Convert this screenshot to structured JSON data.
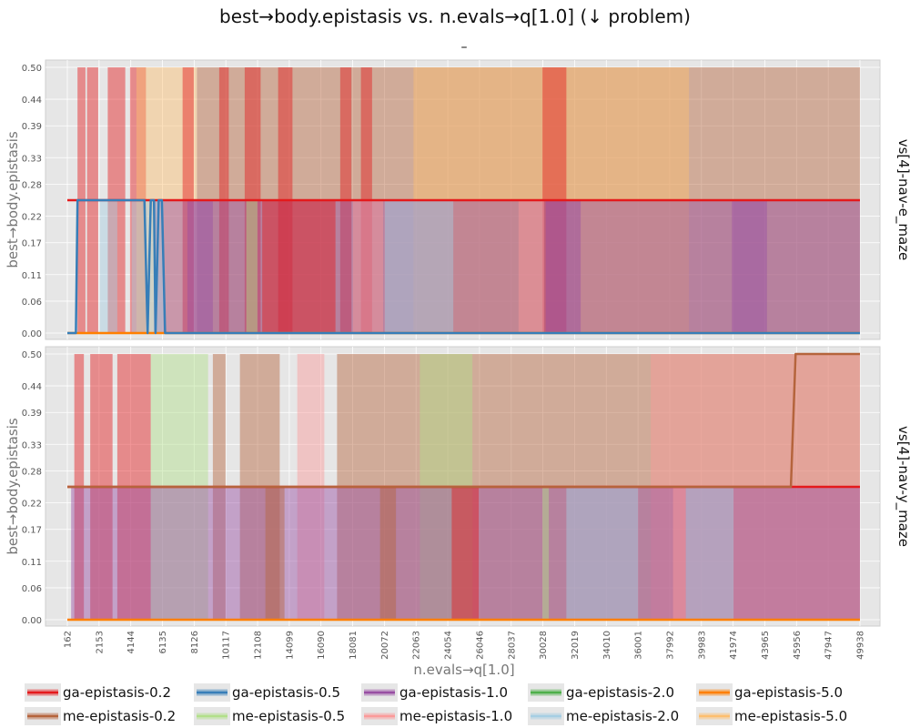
{
  "chart_data": {
    "type": "area",
    "title": "best→body.epistasis vs. n.evals→q[1.0] (↓ problem)",
    "subtitle": "–",
    "xlabel": "n.evals→q[1.0]",
    "ylabel": "best→body.epistasis",
    "xlim": [
      162,
      49938
    ],
    "ylim": [
      0.0,
      0.5
    ],
    "x_ticks": [
      162,
      2153,
      4144,
      6135,
      8126,
      10117,
      12108,
      14099,
      16090,
      18081,
      20072,
      22063,
      24054,
      26046,
      28037,
      30028,
      32019,
      34010,
      36001,
      37992,
      39983,
      41974,
      43965,
      45956,
      47947,
      49938
    ],
    "y_ticks": [
      "0.00",
      "0.06",
      "0.11",
      "0.17",
      "0.22",
      "0.28",
      "0.33",
      "0.39",
      "0.44",
      "0.50"
    ],
    "grid": true,
    "legend_position": "bottom",
    "series": [
      {
        "name": "ga-epistasis-0.2",
        "color": "#e41a1c"
      },
      {
        "name": "ga-epistasis-0.5",
        "color": "#377eb8"
      },
      {
        "name": "ga-epistasis-1.0",
        "color": "#984ea3"
      },
      {
        "name": "ga-epistasis-2.0",
        "color": "#4daf4a"
      },
      {
        "name": "ga-epistasis-5.0",
        "color": "#ff7f00"
      },
      {
        "name": "me-epistasis-0.2",
        "color": "#b5643c"
      },
      {
        "name": "me-epistasis-0.5",
        "color": "#b2df8a"
      },
      {
        "name": "me-epistasis-1.0",
        "color": "#fb9a99"
      },
      {
        "name": "me-epistasis-2.0",
        "color": "#a6cee3"
      },
      {
        "name": "me-epistasis-5.0",
        "color": "#fdbf6f"
      }
    ],
    "panels": [
      {
        "facet_label": "vs[4]-nav-e_maze",
        "median_lines": [
          {
            "series": "ga-epistasis-0.2",
            "x": [
              162,
              49938
            ],
            "y": [
              0.25,
              0.25
            ]
          },
          {
            "series": "ga-epistasis-5.0",
            "x": [
              162,
              49938
            ],
            "y": [
              0.0,
              0.0
            ]
          },
          {
            "series": "ga-epistasis-0.5",
            "x": [
              162,
              700,
              800,
              5000,
              5200,
              5400,
              5600,
              5700,
              5900,
              6100,
              6300,
              49938
            ],
            "y": [
              0.0,
              0.0,
              0.25,
              0.25,
              0.0,
              0.25,
              0.25,
              0.0,
              0.25,
              0.25,
              0.0,
              0.0
            ]
          }
        ],
        "bands": [
          {
            "series": "me-epistasis-0.2",
            "x": [
              8300,
              49938
            ],
            "y": [
              0.0,
              0.5
            ]
          },
          {
            "series": "me-epistasis-5.0",
            "x": [
              21900,
              39200
            ],
            "y": [
              0.0,
              0.5
            ]
          },
          {
            "series": "ga-epistasis-0.2",
            "x": [
              800,
              1300
            ],
            "y": [
              0.0,
              0.5
            ]
          },
          {
            "series": "ga-epistasis-0.2",
            "x": [
              1400,
              2100
            ],
            "y": [
              0.0,
              0.5
            ]
          },
          {
            "series": "ga-epistasis-0.2",
            "x": [
              2700,
              3800
            ],
            "y": [
              0.0,
              0.5
            ]
          },
          {
            "series": "ga-epistasis-0.2",
            "x": [
              4100,
              5100
            ],
            "y": [
              0.0,
              0.5
            ]
          },
          {
            "series": "me-epistasis-5.0",
            "x": [
              4500,
              8300
            ],
            "y": [
              0.0,
              0.5
            ]
          },
          {
            "series": "ga-epistasis-0.2",
            "x": [
              7400,
              8100
            ],
            "y": [
              0.0,
              0.5
            ]
          },
          {
            "series": "ga-epistasis-0.2",
            "x": [
              9700,
              10300
            ],
            "y": [
              0.0,
              0.5
            ]
          },
          {
            "series": "ga-epistasis-0.2",
            "x": [
              11300,
              12300
            ],
            "y": [
              0.0,
              0.5
            ]
          },
          {
            "series": "ga-epistasis-0.2",
            "x": [
              13400,
              14300
            ],
            "y": [
              0.0,
              0.5
            ]
          },
          {
            "series": "ga-epistasis-0.2",
            "x": [
              17300,
              18000
            ],
            "y": [
              0.0,
              0.5
            ]
          },
          {
            "series": "ga-epistasis-0.2",
            "x": [
              18600,
              19300
            ],
            "y": [
              0.0,
              0.5
            ]
          },
          {
            "series": "ga-epistasis-0.2",
            "x": [
              30000,
              31500
            ],
            "y": [
              0.0,
              0.5
            ]
          },
          {
            "series": "ga-epistasis-1.0",
            "x": [
              5600,
              49938
            ],
            "y": [
              0.0,
              0.25
            ]
          },
          {
            "series": "me-epistasis-2.0",
            "x": [
              20100,
              24400
            ],
            "y": [
              0.0,
              0.25
            ]
          },
          {
            "series": "ga-epistasis-0.2",
            "x": [
              12400,
              17000
            ],
            "y": [
              0.0,
              0.25
            ]
          },
          {
            "series": "me-epistasis-1.0",
            "x": [
              18100,
              20000
            ],
            "y": [
              0.0,
              0.25
            ]
          },
          {
            "series": "me-epistasis-2.0",
            "x": [
              2200,
              3300
            ],
            "y": [
              0.0,
              0.25
            ]
          },
          {
            "series": "me-epistasis-2.0",
            "x": [
              4200,
              6200
            ],
            "y": [
              0.0,
              0.25
            ]
          },
          {
            "series": "me-epistasis-0.5",
            "x": [
              11400,
              12100
            ],
            "y": [
              0.0,
              0.25
            ]
          },
          {
            "series": "ga-epistasis-1.0",
            "x": [
              7700,
              9300
            ],
            "y": [
              0.0,
              0.25
            ]
          },
          {
            "series": "ga-epistasis-1.0",
            "x": [
              41900,
              44100
            ],
            "y": [
              0.0,
              0.25
            ]
          },
          {
            "series": "me-epistasis-1.0",
            "x": [
              28500,
              30100
            ],
            "y": [
              0.0,
              0.25
            ]
          },
          {
            "series": "ga-epistasis-1.0",
            "x": [
              30200,
              32400
            ],
            "y": [
              0.0,
              0.25
            ]
          }
        ]
      },
      {
        "facet_label": "vs[4]-nav-y_maze",
        "median_lines": [
          {
            "series": "ga-epistasis-0.2",
            "x": [
              162,
              49938
            ],
            "y": [
              0.25,
              0.25
            ]
          },
          {
            "series": "ga-epistasis-5.0",
            "x": [
              162,
              49938
            ],
            "y": [
              0.0,
              0.0
            ]
          },
          {
            "series": "me-epistasis-0.2",
            "x": [
              162,
              45600,
              45900,
              49938
            ],
            "y": [
              0.25,
              0.25,
              0.5,
              0.5
            ]
          }
        ],
        "bands": [
          {
            "series": "me-epistasis-0.2",
            "x": [
              17100,
              49938
            ],
            "y": [
              0.0,
              0.5
            ]
          },
          {
            "series": "me-epistasis-1.0",
            "x": [
              36800,
              49938
            ],
            "y": [
              0.0,
              0.5
            ]
          },
          {
            "series": "me-epistasis-0.5",
            "x": [
              22300,
              25600
            ],
            "y": [
              0.0,
              0.5
            ]
          },
          {
            "series": "me-epistasis-1.0",
            "x": [
              14600,
              16300
            ],
            "y": [
              0.0,
              0.5
            ]
          },
          {
            "series": "ga-epistasis-0.2",
            "x": [
              600,
              1200
            ],
            "y": [
              0.0,
              0.5
            ]
          },
          {
            "series": "ga-epistasis-0.2",
            "x": [
              1600,
              3000
            ],
            "y": [
              0.0,
              0.5
            ]
          },
          {
            "series": "ga-epistasis-0.2",
            "x": [
              3300,
              5400
            ],
            "y": [
              0.0,
              0.5
            ]
          },
          {
            "series": "me-epistasis-0.5",
            "x": [
              5400,
              9000
            ],
            "y": [
              0.0,
              0.5
            ]
          },
          {
            "series": "me-epistasis-0.2",
            "x": [
              9300,
              10100
            ],
            "y": [
              0.0,
              0.5
            ]
          },
          {
            "series": "me-epistasis-0.2",
            "x": [
              11000,
              13500
            ],
            "y": [
              0.0,
              0.5
            ]
          },
          {
            "series": "ga-epistasis-1.0",
            "x": [
              400,
              49938
            ],
            "y": [
              0.0,
              0.25
            ]
          },
          {
            "series": "me-epistasis-2.0",
            "x": [
              31500,
              36000
            ],
            "y": [
              0.0,
              0.25
            ]
          },
          {
            "series": "me-epistasis-2.0",
            "x": [
              39000,
              42000
            ],
            "y": [
              0.0,
              0.25
            ]
          },
          {
            "series": "ga-epistasis-0.2",
            "x": [
              24300,
              26000
            ],
            "y": [
              0.0,
              0.25
            ]
          },
          {
            "series": "me-epistasis-1.0",
            "x": [
              38200,
              39000
            ],
            "y": [
              0.0,
              0.25
            ]
          },
          {
            "series": "me-epistasis-0.5",
            "x": [
              30000,
              30400
            ],
            "y": [
              0.0,
              0.25
            ]
          },
          {
            "series": "me-epistasis-0.2",
            "x": [
              12600,
              13800
            ],
            "y": [
              0.0,
              0.25
            ]
          },
          {
            "series": "me-epistasis-0.2",
            "x": [
              19800,
              20800
            ],
            "y": [
              0.0,
              0.25
            ]
          }
        ]
      }
    ]
  }
}
